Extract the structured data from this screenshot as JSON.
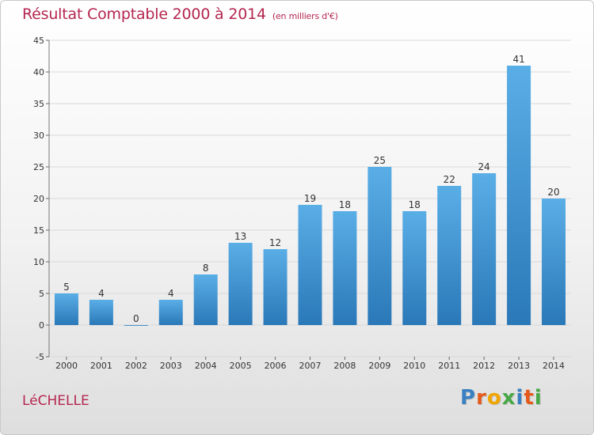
{
  "title": "Résultat Comptable 2000 à 2014",
  "subtitle": "(en milliers d'€)",
  "place": "LéCHELLE",
  "logo_text": "Proxiti",
  "colors": {
    "title": "#b5264f",
    "bar_top": "#5aaee6",
    "bar_bottom": "#2a78b8",
    "grid": "#d9d9d9",
    "logo_letters": [
      "#3a7fc1",
      "#e55a1c",
      "#f0a500",
      "#47a845",
      "#3a7fc1",
      "#e55a1c",
      "#47a845"
    ]
  },
  "chart_data": {
    "type": "bar",
    "title": "Résultat Comptable 2000 à 2014",
    "subtitle": "(en milliers d'€)",
    "categories": [
      "2000",
      "2001",
      "2002",
      "2003",
      "2004",
      "2005",
      "2006",
      "2007",
      "2008",
      "2009",
      "2010",
      "2011",
      "2012",
      "2013",
      "2014"
    ],
    "values": [
      5,
      4,
      0,
      4,
      8,
      13,
      12,
      19,
      18,
      25,
      18,
      22,
      24,
      41,
      20
    ],
    "ylim": [
      -5,
      45
    ],
    "yticks": [
      -5,
      0,
      5,
      10,
      15,
      20,
      25,
      30,
      35,
      40,
      45
    ],
    "grid": true,
    "legend": "none"
  }
}
